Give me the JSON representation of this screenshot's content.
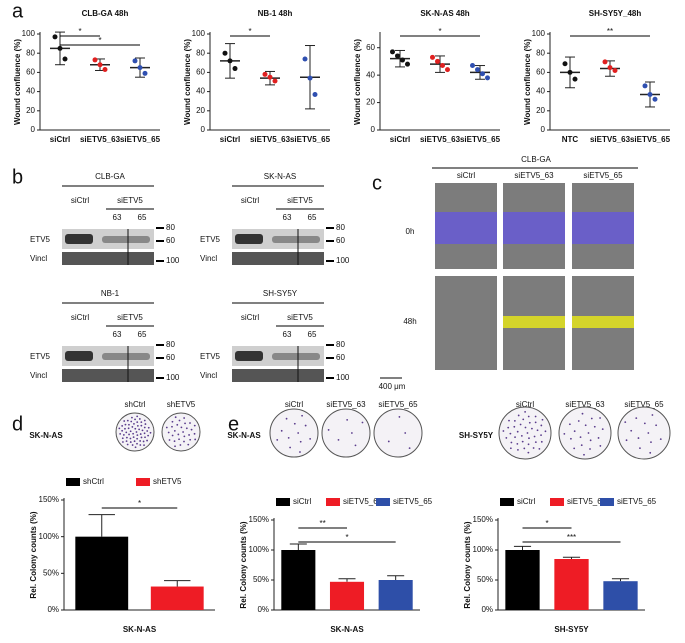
{
  "panel_labels": [
    "a",
    "b",
    "c",
    "d",
    "e"
  ],
  "chart_data": [
    {
      "type": "dotplot",
      "title": "CLB-GA 48h",
      "y_label": "Wound confluence (%)",
      "categories": [
        "siCtrl",
        "siETV5_63",
        "siETV5_65"
      ],
      "colors": [
        "#111111",
        "#e02020",
        "#2f4fb0"
      ],
      "points": [
        [
          97,
          85,
          74
        ],
        [
          73,
          68,
          63
        ],
        [
          72,
          65,
          59
        ]
      ],
      "means": [
        85,
        68,
        65
      ],
      "errors": [
        17,
        6,
        10
      ],
      "ylim": [
        0,
        100
      ],
      "yticks": [
        0,
        20,
        40,
        60,
        80,
        100
      ],
      "significance": [
        {
          "between": [
            0,
            1
          ],
          "label": "*"
        },
        {
          "between": [
            0,
            2
          ],
          "label": "*"
        }
      ]
    },
    {
      "type": "dotplot",
      "title": "NB-1 48h",
      "y_label": "Wound confluence (%)",
      "categories": [
        "siCtrl",
        "siETV5_63",
        "siETV5_65"
      ],
      "colors": [
        "#111111",
        "#e02020",
        "#2f4fb0"
      ],
      "points": [
        [
          80,
          72,
          64
        ],
        [
          58,
          55,
          51
        ],
        [
          74,
          54,
          37
        ]
      ],
      "means": [
        72,
        54,
        55
      ],
      "errors": [
        18,
        7,
        33
      ],
      "ylim": [
        0,
        100
      ],
      "yticks": [
        0,
        20,
        40,
        60,
        80,
        100
      ],
      "significance": [
        {
          "between": [
            0,
            1
          ],
          "label": "*"
        }
      ]
    },
    {
      "type": "dotplot",
      "title": "SK-N-AS 48h",
      "y_label": "Wound confluence (%)",
      "categories": [
        "siCtrl",
        "siETV5_63",
        "siETV5_65"
      ],
      "colors": [
        "#111111",
        "#e02020",
        "#2f4fb0"
      ],
      "points": [
        [
          57,
          54,
          51,
          48
        ],
        [
          53,
          50,
          47,
          44
        ],
        [
          47,
          44,
          41,
          38
        ]
      ],
      "means": [
        52,
        48,
        42
      ],
      "errors": [
        6,
        6,
        5
      ],
      "ylim": [
        0,
        70
      ],
      "yticks": [
        0,
        20,
        40,
        60
      ],
      "significance": [
        {
          "between": [
            0,
            2
          ],
          "label": "*"
        }
      ]
    },
    {
      "type": "dotplot",
      "title": "SH-SY5Y_48h",
      "y_label": "Wound confluence (%)",
      "categories": [
        "NTC",
        "siETV5_63",
        "siETV5_65"
      ],
      "colors": [
        "#111111",
        "#e02020",
        "#2f4fb0"
      ],
      "points": [
        [
          69,
          60,
          53
        ],
        [
          71,
          65,
          62
        ],
        [
          46,
          37,
          32
        ]
      ],
      "means": [
        60,
        64,
        37
      ],
      "errors": [
        16,
        8,
        13
      ],
      "ylim": [
        0,
        100
      ],
      "yticks": [
        0,
        20,
        40,
        60,
        80,
        100
      ],
      "significance": [
        {
          "between": [
            0,
            2
          ],
          "label": "**"
        }
      ]
    },
    {
      "type": "bar",
      "y_label": "Rel. Colony counts (%)",
      "x_label": "SK-N-AS",
      "categories": [
        "shCtrl",
        "shETV5"
      ],
      "colors": [
        "#000000",
        "#ee1c25"
      ],
      "values": [
        100,
        32
      ],
      "errors": [
        30,
        8
      ],
      "ylim": [
        0,
        150
      ],
      "yticks": [
        {
          "value": 0,
          "label": "0%"
        },
        {
          "value": 50,
          "label": "50%"
        },
        {
          "value": 100,
          "label": "100%"
        },
        {
          "value": 150,
          "label": "150%"
        }
      ],
      "significance": [
        {
          "between": [
            0,
            1
          ],
          "label": "*"
        }
      ]
    },
    {
      "type": "bar",
      "y_label": "Rel. Colony counts (%)",
      "x_label": "SK-N-AS",
      "categories": [
        "siCtrl",
        "siETV5_63",
        "siETV5_65"
      ],
      "colors": [
        "#000000",
        "#ee1c25",
        "#2e4fa8"
      ],
      "values": [
        100,
        47,
        50
      ],
      "errors": [
        10,
        5,
        7
      ],
      "ylim": [
        0,
        150
      ],
      "yticks": [
        {
          "value": 0,
          "label": "0%"
        },
        {
          "value": 50,
          "label": "50%"
        },
        {
          "value": 100,
          "label": "100%"
        },
        {
          "value": 150,
          "label": "150%"
        }
      ],
      "significance": [
        {
          "between": [
            0,
            1
          ],
          "label": "**"
        },
        {
          "between": [
            0,
            2
          ],
          "label": "*"
        }
      ]
    },
    {
      "type": "bar",
      "y_label": "Rel. Colony counts (%)",
      "x_label": "SH-SY5Y",
      "categories": [
        "siCtrl",
        "siETV5_63",
        "siETV5_65"
      ],
      "colors": [
        "#000000",
        "#ee1c25",
        "#2e4fa8"
      ],
      "values": [
        100,
        85,
        48
      ],
      "errors": [
        6,
        3,
        4
      ],
      "ylim": [
        0,
        150
      ],
      "yticks": [
        {
          "value": 0,
          "label": "0%"
        },
        {
          "value": 50,
          "label": "50%"
        },
        {
          "value": 100,
          "label": "100%"
        },
        {
          "value": 150,
          "label": "150%"
        }
      ],
      "significance": [
        {
          "between": [
            0,
            1
          ],
          "label": "*"
        },
        {
          "between": [
            0,
            2
          ],
          "label": "***"
        }
      ]
    }
  ],
  "blots": [
    {
      "title": "CLB-GA",
      "control": "siCtrl",
      "treatment": "siETV5",
      "lanes": [
        "63",
        "65"
      ],
      "rows": [
        "ETV5",
        "Vincl"
      ],
      "markers": [
        80,
        60,
        100
      ]
    },
    {
      "title": "SK-N-AS",
      "control": "siCtrl",
      "treatment": "siETV5",
      "lanes": [
        "63",
        "65"
      ],
      "rows": [
        "ETV5",
        "Vincl"
      ],
      "markers": [
        80,
        60,
        100
      ]
    },
    {
      "title": "NB-1",
      "control": "siCtrl",
      "treatment": "siETV5",
      "lanes": [
        "63",
        "65"
      ],
      "rows": [
        "ETV5",
        "Vincl"
      ],
      "markers": [
        80,
        60,
        100
      ]
    },
    {
      "title": "SH-SY5Y",
      "control": "siCtrl",
      "treatment": "siETV5",
      "lanes": [
        "63",
        "65"
      ],
      "rows": [
        "ETV5",
        "Vincl"
      ],
      "markers": [
        80,
        60,
        100
      ]
    }
  ],
  "migration": {
    "title": "CLB-GA",
    "columns": [
      "siCtrl",
      "siETV5_63",
      "siETV5_65"
    ],
    "rows": [
      "0h",
      "48h"
    ],
    "scale_bar": "400 μm"
  },
  "colony_images": [
    {
      "cell_line": "SK-N-AS",
      "columns": [
        "shCtrl",
        "shETV5"
      ]
    },
    {
      "cell_line": "SK-N-AS",
      "columns": [
        "siCtrl",
        "siETV5_63",
        "siETV5_65"
      ]
    },
    {
      "cell_line": "SH-SY5Y",
      "columns": [
        "siCtrl",
        "siETV5_63",
        "siETV5_65"
      ]
    }
  ]
}
